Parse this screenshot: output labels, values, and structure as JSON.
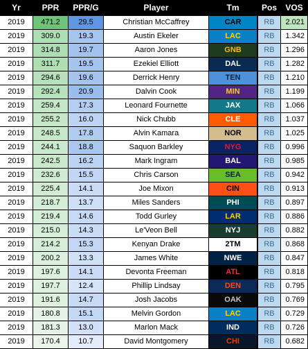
{
  "headers": {
    "yr": "Yr",
    "ppr": "PPR",
    "pprg": "PPR/G",
    "player": "Player",
    "team": "Tm",
    "pos": "Pos",
    "vos": "VOS"
  },
  "rows": [
    {
      "yr": "2019",
      "ppr": "471.2",
      "pprg": "29.5",
      "player": "Christian McCaffrey",
      "team": "CAR",
      "team_bg": "#0086c7",
      "team_fg": "#000000",
      "pos": "RB",
      "vos": "2.021",
      "vos_bg": "#bfe6bf"
    },
    {
      "yr": "2019",
      "ppr": "309.0",
      "pprg": "19.3",
      "player": "Austin Ekeler",
      "team": "LAC",
      "team_bg": "#0a80c6",
      "team_fg": "#ffd200",
      "pos": "RB",
      "vos": "1.342",
      "vos_bg": "#ffffff"
    },
    {
      "yr": "2019",
      "ppr": "314.8",
      "pprg": "19.7",
      "player": "Aaron Jones",
      "team": "GNB",
      "team_bg": "#1e3a20",
      "team_fg": "#ffb612",
      "pos": "RB",
      "vos": "1.296",
      "vos_bg": "#ffffff"
    },
    {
      "yr": "2019",
      "ppr": "311.7",
      "pprg": "19.5",
      "player": "Ezekiel Elliott",
      "team": "DAL",
      "team_bg": "#0b2a52",
      "team_fg": "#ffffff",
      "pos": "RB",
      "vos": "1.282",
      "vos_bg": "#ffffff"
    },
    {
      "yr": "2019",
      "ppr": "294.6",
      "pprg": "19.6",
      "player": "Derrick Henry",
      "team": "TEN",
      "team_bg": "#4b92db",
      "team_fg": "#0c2340",
      "pos": "RB",
      "vos": "1.210",
      "vos_bg": "#ffffff"
    },
    {
      "yr": "2019",
      "ppr": "292.4",
      "pprg": "20.9",
      "player": "Dalvin Cook",
      "team": "MIN",
      "team_bg": "#4f2683",
      "team_fg": "#ffc62f",
      "pos": "RB",
      "vos": "1.199",
      "vos_bg": "#ffffff"
    },
    {
      "yr": "2019",
      "ppr": "259.4",
      "pprg": "17.3",
      "player": "Leonard Fournette",
      "team": "JAX",
      "team_bg": "#11798a",
      "team_fg": "#ffffff",
      "pos": "RB",
      "vos": "1.066",
      "vos_bg": "#ffffff"
    },
    {
      "yr": "2019",
      "ppr": "255.2",
      "pprg": "16.0",
      "player": "Nick Chubb",
      "team": "CLE",
      "team_bg": "#ff5a00",
      "team_fg": "#ffffff",
      "pos": "RB",
      "vos": "1.037",
      "vos_bg": "#ffffff"
    },
    {
      "yr": "2019",
      "ppr": "248.5",
      "pprg": "17.8",
      "player": "Alvin Kamara",
      "team": "NOR",
      "team_bg": "#d3bc8d",
      "team_fg": "#000000",
      "pos": "RB",
      "vos": "1.025",
      "vos_bg": "#ffffff"
    },
    {
      "yr": "2019",
      "ppr": "244.1",
      "pprg": "18.8",
      "player": "Saquon Barkley",
      "team": "NYG",
      "team_bg": "#0b2265",
      "team_fg": "#e51a2e",
      "pos": "RB",
      "vos": "0.996",
      "vos_bg": "#ffffff"
    },
    {
      "yr": "2019",
      "ppr": "242.5",
      "pprg": "16.2",
      "player": "Mark Ingram",
      "team": "BAL",
      "team_bg": "#241773",
      "team_fg": "#ffffff",
      "pos": "RB",
      "vos": "0.985",
      "vos_bg": "#ffffff"
    },
    {
      "yr": "2019",
      "ppr": "232.6",
      "pprg": "15.5",
      "player": "Chris Carson",
      "team": "SEA",
      "team_bg": "#69be28",
      "team_fg": "#002244",
      "pos": "RB",
      "vos": "0.942",
      "vos_bg": "#ffffff"
    },
    {
      "yr": "2019",
      "ppr": "225.4",
      "pprg": "14.1",
      "player": "Joe Mixon",
      "team": "CIN",
      "team_bg": "#fb4f14",
      "team_fg": "#000000",
      "pos": "RB",
      "vos": "0.913",
      "vos_bg": "#ffffff"
    },
    {
      "yr": "2019",
      "ppr": "218.7",
      "pprg": "13.7",
      "player": "Miles Sanders",
      "team": "PHI",
      "team_bg": "#004c54",
      "team_fg": "#ffffff",
      "pos": "RB",
      "vos": "0.897",
      "vos_bg": "#ffffff"
    },
    {
      "yr": "2019",
      "ppr": "219.4",
      "pprg": "14.6",
      "player": "Todd Gurley",
      "team": "LAR",
      "team_bg": "#002d72",
      "team_fg": "#ffd100",
      "pos": "RB",
      "vos": "0.886",
      "vos_bg": "#ffffff"
    },
    {
      "yr": "2019",
      "ppr": "215.0",
      "pprg": "14.3",
      "player": "Le'Veon Bell",
      "team": "NYJ",
      "team_bg": "#1a3d2f",
      "team_fg": "#ffffff",
      "pos": "RB",
      "vos": "0.882",
      "vos_bg": "#ffffff"
    },
    {
      "yr": "2019",
      "ppr": "214.2",
      "pprg": "15.3",
      "player": "Kenyan Drake",
      "team": "2TM",
      "team_bg": "#ffffff",
      "team_fg": "#000000",
      "pos": "RB",
      "vos": "0.868",
      "vos_bg": "#ffffff"
    },
    {
      "yr": "2019",
      "ppr": "200.2",
      "pprg": "13.3",
      "player": "James White",
      "team": "NWE",
      "team_bg": "#002244",
      "team_fg": "#ffffff",
      "pos": "RB",
      "vos": "0.847",
      "vos_bg": "#ffffff"
    },
    {
      "yr": "2019",
      "ppr": "197.6",
      "pprg": "14.1",
      "player": "Devonta Freeman",
      "team": "ATL",
      "team_bg": "#000000",
      "team_fg": "#e8343c",
      "pos": "RB",
      "vos": "0.818",
      "vos_bg": "#ffffff"
    },
    {
      "yr": "2019",
      "ppr": "197.7",
      "pprg": "12.4",
      "player": "Phillip Lindsay",
      "team": "DEN",
      "team_bg": "#0b2a58",
      "team_fg": "#fb4f14",
      "pos": "RB",
      "vos": "0.795",
      "vos_bg": "#ffffff"
    },
    {
      "yr": "2019",
      "ppr": "191.6",
      "pprg": "14.7",
      "player": "Josh Jacobs",
      "team": "OAK",
      "team_bg": "#0a0a0a",
      "team_fg": "#c4c8cb",
      "pos": "RB",
      "vos": "0.769",
      "vos_bg": "#ffffff"
    },
    {
      "yr": "2019",
      "ppr": "180.8",
      "pprg": "15.1",
      "player": "Melvin Gordon",
      "team": "LAC",
      "team_bg": "#0a80c6",
      "team_fg": "#ffd200",
      "pos": "RB",
      "vos": "0.729",
      "vos_bg": "#ffffff"
    },
    {
      "yr": "2019",
      "ppr": "181.3",
      "pprg": "13.0",
      "player": "Marlon Mack",
      "team": "IND",
      "team_bg": "#002c5f",
      "team_fg": "#ffffff",
      "pos": "RB",
      "vos": "0.726",
      "vos_bg": "#ffffff"
    },
    {
      "yr": "2019",
      "ppr": "170.4",
      "pprg": "10.7",
      "player": "David Montgomery",
      "team": "CHI",
      "team_bg": "#0b162a",
      "team_fg": "#e64100",
      "pos": "RB",
      "vos": "0.682",
      "vos_bg": "#ffffff"
    }
  ]
}
